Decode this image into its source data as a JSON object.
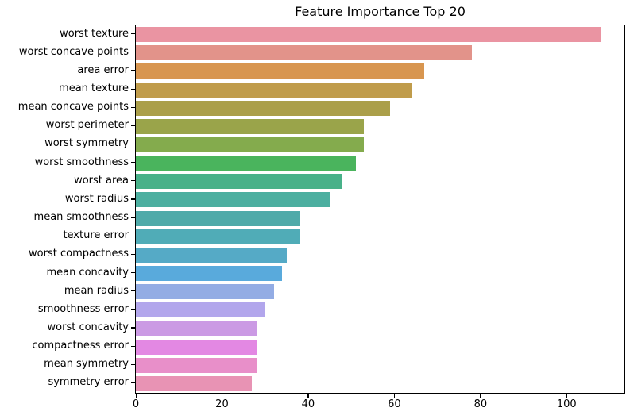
{
  "chart_data": {
    "type": "bar",
    "orientation": "horizontal",
    "title": "Feature Importance Top 20",
    "xlabel": "",
    "ylabel": "",
    "grid": false,
    "legend": null,
    "xlim": [
      0,
      113.4
    ],
    "xticks": [
      0,
      20,
      40,
      60,
      80,
      100
    ],
    "categories": [
      "worst texture",
      "worst concave points",
      "area error",
      "mean texture",
      "mean concave points",
      "worst perimeter",
      "worst symmetry",
      "worst smoothness",
      "worst area",
      "worst radius",
      "mean smoothness",
      "texture error",
      "worst compactness",
      "mean concavity",
      "mean radius",
      "smoothness error",
      "worst concavity",
      "compactness error",
      "mean symmetry",
      "symmetry error"
    ],
    "values": [
      108,
      78,
      67,
      64,
      59,
      53,
      53,
      51,
      48,
      45,
      38,
      38,
      35,
      34,
      32,
      30,
      28,
      28,
      28,
      27
    ],
    "bar_colors": [
      "#ea94a2",
      "#e2938a",
      "#d89650",
      "#c09c4b",
      "#ab9f4a",
      "#9aa44a",
      "#84ab4d",
      "#4ab45d",
      "#48b189",
      "#4cafa0",
      "#4faaa9",
      "#50acb7",
      "#55aac6",
      "#59aadc",
      "#93ace4",
      "#b2a6ec",
      "#cb9ae4",
      "#e388e3",
      "#e88fc9",
      "#e893b4"
    ],
    "axis_color": "#000000",
    "background_color": "#ffffff"
  }
}
